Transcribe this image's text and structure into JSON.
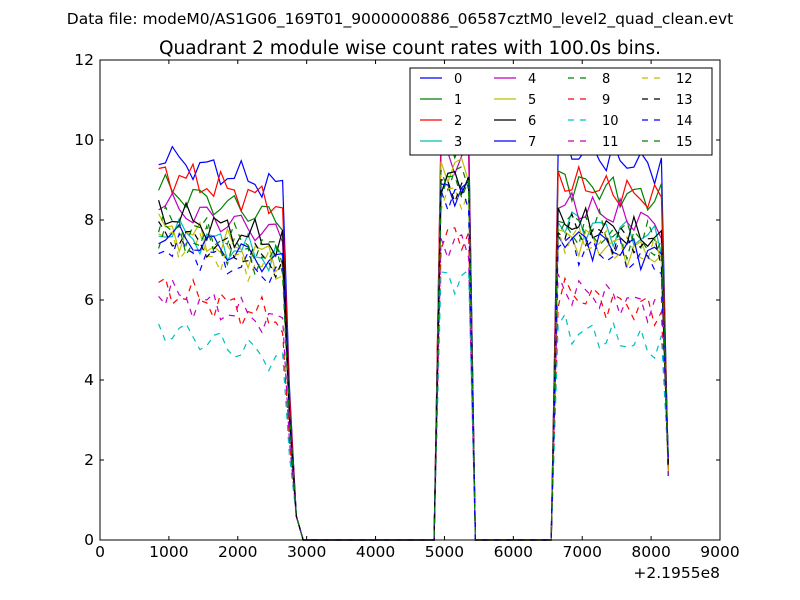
{
  "chart_data": {
    "type": "line",
    "suptitle": "Data file: modeM0/AS1G06_169T01_9000000886_06587cztM0_level2_quad_clean.evt",
    "title": "Quadrant 2 module wise count rates with 100.0s bins.",
    "xlabel": "",
    "ylabel": "",
    "offset_label": "+2.1955e8",
    "xlim": [
      0,
      9000
    ],
    "ylim": [
      0,
      12
    ],
    "xticks": [
      0,
      1000,
      2000,
      3000,
      4000,
      5000,
      6000,
      7000,
      8000,
      9000
    ],
    "yticks": [
      0,
      2,
      4,
      6,
      8,
      10,
      12
    ],
    "legend_position": "top-right",
    "legend_columns": 4,
    "segments": [
      {
        "start": 850,
        "end": 2650
      },
      {
        "start": 4950,
        "end": 5350
      },
      {
        "start": 6650,
        "end": 8150
      }
    ],
    "series": [
      {
        "name": "0",
        "color": "#0000ff",
        "dash": "solid",
        "base": [
          9.6,
          10.2,
          9.8
        ]
      },
      {
        "name": "1",
        "color": "#008000",
        "dash": "solid",
        "base": [
          8.8,
          9.9,
          9.0
        ]
      },
      {
        "name": "2",
        "color": "#ff0000",
        "dash": "solid",
        "base": [
          9.2,
          10.1,
          9.0
        ]
      },
      {
        "name": "3",
        "color": "#00bfbf",
        "dash": "solid",
        "base": [
          7.8,
          9.0,
          8.0
        ]
      },
      {
        "name": "4",
        "color": "#bf00bf",
        "dash": "solid",
        "base": [
          8.4,
          9.5,
          8.4
        ]
      },
      {
        "name": "5",
        "color": "#bfbf00",
        "dash": "solid",
        "base": [
          7.8,
          9.3,
          7.6
        ]
      },
      {
        "name": "6",
        "color": "#000000",
        "dash": "solid",
        "base": [
          8.2,
          9.0,
          8.0
        ]
      },
      {
        "name": "7",
        "color": "#0000ff",
        "dash": "solid",
        "base": [
          7.7,
          8.7,
          7.6
        ]
      },
      {
        "name": "8",
        "color": "#008000",
        "dash": "dashed",
        "base": [
          8.0,
          9.1,
          8.0
        ]
      },
      {
        "name": "9",
        "color": "#ff0000",
        "dash": "dashed",
        "base": [
          6.3,
          7.6,
          6.2
        ]
      },
      {
        "name": "10",
        "color": "#00bfbf",
        "dash": "dashed",
        "base": [
          5.3,
          6.5,
          5.3
        ]
      },
      {
        "name": "11",
        "color": "#bf00bf",
        "dash": "dashed",
        "base": [
          6.2,
          7.4,
          6.3
        ]
      },
      {
        "name": "12",
        "color": "#bfbf00",
        "dash": "dashed",
        "base": [
          7.5,
          8.6,
          7.6
        ]
      },
      {
        "name": "13",
        "color": "#000000",
        "dash": "dashed",
        "base": [
          7.7,
          8.8,
          7.8
        ]
      },
      {
        "name": "14",
        "color": "#0000ff",
        "dash": "dashed",
        "base": [
          7.4,
          8.6,
          7.4
        ]
      },
      {
        "name": "15",
        "color": "#008000",
        "dash": "dashed",
        "base": [
          7.7,
          8.9,
          7.8
        ]
      }
    ]
  }
}
